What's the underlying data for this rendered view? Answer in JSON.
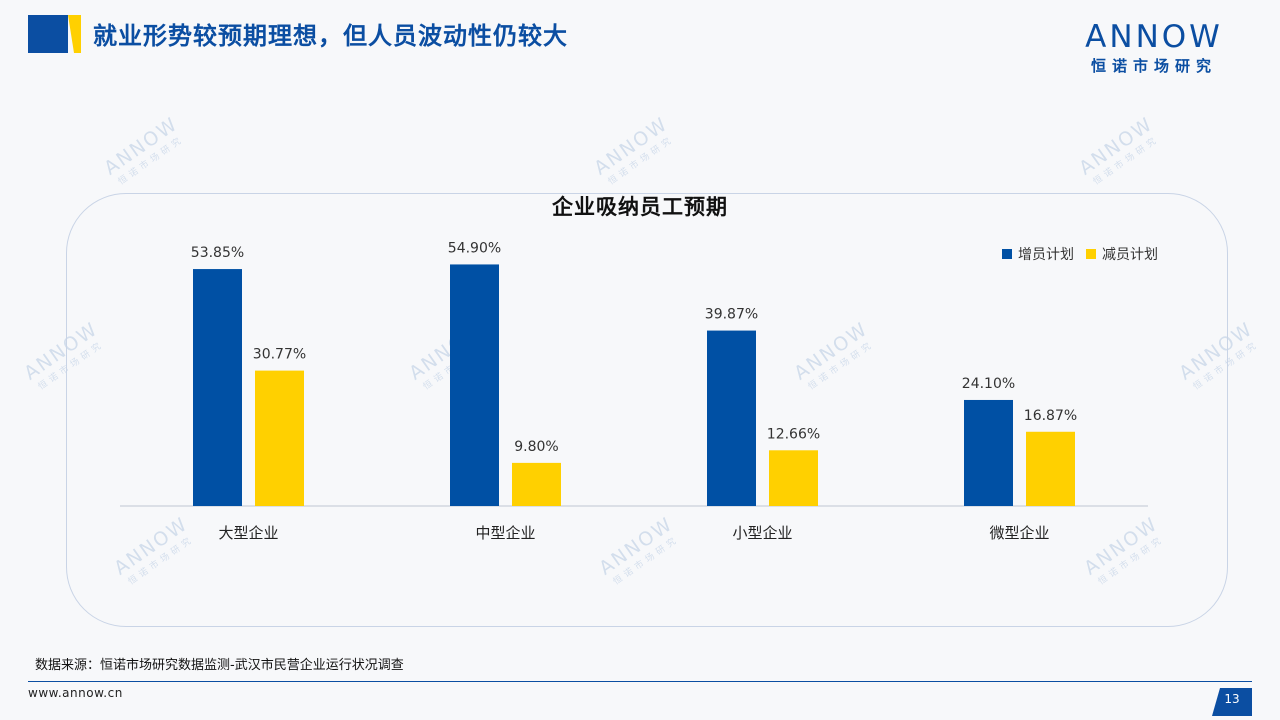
{
  "header": {
    "title": "就业形势较预期理想，但人员波动性仍较大",
    "logo_text": "ANNOW",
    "logo_sub": "恒诺市场研究"
  },
  "watermark": {
    "text": "ANNOW",
    "sub": "恒诺市场研究"
  },
  "colors": {
    "brand_blue": "#0b4ea2",
    "accent_yellow": "#ffd000",
    "bar_blue": "#0050a4",
    "bar_yellow": "#ffd000"
  },
  "chart_data": {
    "type": "bar",
    "title": "企业吸纳员工预期",
    "categories": [
      "大型企业",
      "中型企业",
      "小型企业",
      "微型企业"
    ],
    "series": [
      {
        "name": "增员计划",
        "values": [
          53.85,
          54.9,
          39.87,
          24.1
        ],
        "labels": [
          "53.85%",
          "54.90%",
          "39.87%",
          "24.10%"
        ],
        "color": "#0050a4"
      },
      {
        "name": "减员计划",
        "values": [
          30.77,
          9.8,
          12.66,
          16.87
        ],
        "labels": [
          "30.77%",
          "9.80%",
          "12.66%",
          "16.87%"
        ],
        "color": "#ffd000"
      }
    ],
    "ylim": [
      0,
      60
    ],
    "grid": false,
    "legend": "top-right"
  },
  "footer": {
    "source": "数据来源：恒诺市场研究数据监测-武汉市民营企业运行状况调查",
    "url": "www.annow.cn",
    "page": "13"
  }
}
